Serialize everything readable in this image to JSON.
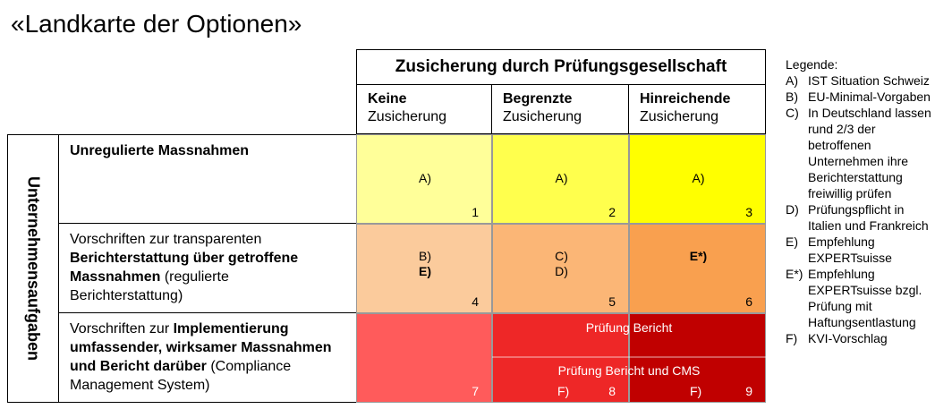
{
  "title": "«Landkarte der Optionen»",
  "header": {
    "top": "Zusicherung durch Prüfungsgesellschaft",
    "columns": [
      {
        "bold": "Keine",
        "normal": "Zusicherung"
      },
      {
        "bold": "Begrenzte",
        "normal": "Zusicherung"
      },
      {
        "bold": "Hinreichende",
        "normal": "Zusicherung"
      }
    ]
  },
  "row_axis_label": "Unternehmensaufgaben",
  "rows": [
    {
      "parts": [
        {
          "text": "Unregulierte Massnahmen",
          "bold": true
        }
      ]
    },
    {
      "parts": [
        {
          "text": "Vorschriften zur transparenten ",
          "bold": false
        },
        {
          "text": "Berichterstattung über getroffene Massnahmen",
          "bold": true
        },
        {
          "text": " (regulierte Berichterstattung)",
          "bold": false
        }
      ]
    },
    {
      "parts": [
        {
          "text": "Vorschriften zur ",
          "bold": false
        },
        {
          "text": "Implementierung umfassender, wirksamer Massnahmen und Bericht darüber",
          "bold": true
        },
        {
          "text": " (Compliance Management System)",
          "bold": false
        }
      ]
    }
  ],
  "cells": {
    "c1": {
      "l1": "A)",
      "l2": "",
      "num": "1"
    },
    "c2": {
      "l1": "A)",
      "l2": "",
      "num": "2"
    },
    "c3": {
      "l1": "A)",
      "l2": "",
      "num": "3"
    },
    "c4": {
      "l1": "B)",
      "l2": "E)",
      "num": "4"
    },
    "c5": {
      "l1": "C)",
      "l2": "D)",
      "num": "5"
    },
    "c6": {
      "l1": "E*)",
      "l2": "",
      "num": "6"
    },
    "c7": {
      "num": "7"
    },
    "c8": {
      "label": "F)",
      "num": "8"
    },
    "c9": {
      "label": "F)",
      "num": "9"
    }
  },
  "overlays": {
    "pruefung_bericht": "Prüfung Bericht",
    "pruefung_bericht_cms": "Prüfung Bericht und CMS"
  },
  "colors": {
    "c1": "#ffff99",
    "c2": "#ffff4d",
    "c3": "#ffff00",
    "c4": "#fbcb9c",
    "c5": "#fbb676",
    "c6": "#f9a04f",
    "c7": "#ff5b5b",
    "c8": "#ee2727",
    "c9": "#c00000"
  },
  "legend": {
    "title": "Legende:",
    "items": [
      {
        "key": "A)",
        "text": "IST Situation Schweiz"
      },
      {
        "key": "B)",
        "text": "EU-Minimal-Vorgaben"
      },
      {
        "key": "C)",
        "text": "In Deutschland lassen rund 2/3 der betroffenen Unternehmen ihre Berichterstattung freiwillig prüfen"
      },
      {
        "key": "D)",
        "text": "Prüfungspflicht in Italien und Frankreich"
      },
      {
        "key": "E)",
        "text": "Empfehlung EXPERTsuisse"
      },
      {
        "key": "E*)",
        "text": "Empfehlung EXPERTsuisse bzgl. Prüfung mit Haftungsentlastung"
      },
      {
        "key": "F)",
        "text": "KVI-Vorschlag"
      }
    ]
  }
}
